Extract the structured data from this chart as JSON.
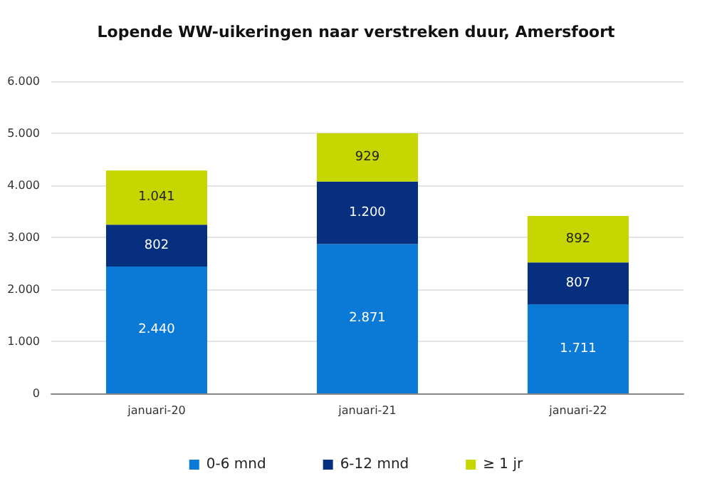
{
  "chart_data": {
    "type": "bar",
    "title": "Lopende WW-uikeringen naar verstreken duur, Amersfoort",
    "categories": [
      "januari-20",
      "januari-21",
      "januari-22"
    ],
    "stacked": true,
    "series": [
      {
        "name": "0-6 mnd",
        "color": "#0a7ad6",
        "values": [
          2440,
          2871,
          1711
        ],
        "value_labels": [
          "2.440",
          "2.871",
          "1.711"
        ]
      },
      {
        "name": "6-12 mnd",
        "color": "#06307f",
        "values": [
          802,
          1200,
          807
        ],
        "value_labels": [
          "802",
          "1.200",
          "807"
        ]
      },
      {
        "name": "≥ 1 jr",
        "color": "#c5d600",
        "values": [
          1041,
          929,
          892
        ],
        "value_labels": [
          "1.041",
          "929",
          "892"
        ]
      }
    ],
    "ylim": [
      0,
      6000
    ],
    "yticks": [
      {
        "value": 0,
        "label": "0"
      },
      {
        "value": 1000,
        "label": "1.000"
      },
      {
        "value": 2000,
        "label": "2.000"
      },
      {
        "value": 3000,
        "label": "3.000"
      },
      {
        "value": 4000,
        "label": "4.000"
      },
      {
        "value": 5000,
        "label": "5.000"
      },
      {
        "value": 6000,
        "label": "6.000"
      }
    ],
    "grid": "y",
    "legend": "bottom"
  }
}
